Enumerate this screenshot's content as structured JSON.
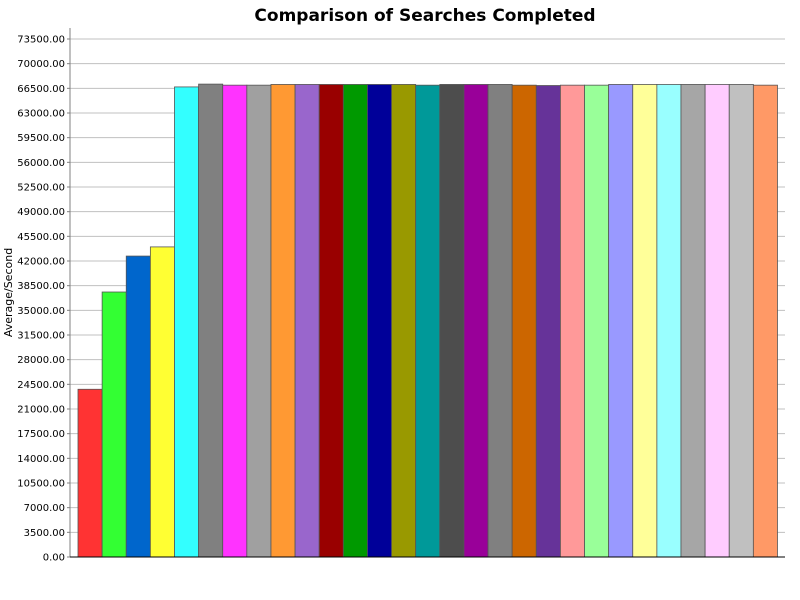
{
  "chart_data": {
    "type": "bar",
    "title": "Comparison of Searches Completed",
    "xlabel": "",
    "ylabel": "Average/Second",
    "ylim": [
      0,
      73500
    ],
    "yticks": [
      0,
      3500,
      7000,
      10500,
      14000,
      17500,
      21000,
      24500,
      28000,
      31500,
      35000,
      38500,
      42000,
      45500,
      49000,
      52500,
      56000,
      59500,
      63000,
      66500,
      70000,
      73500
    ],
    "ytick_labels": [
      "0.00",
      "3500.00",
      "7000.00",
      "10500.00",
      "14000.00",
      "17500.00",
      "21000.00",
      "24500.00",
      "28000.00",
      "31500.00",
      "35000.00",
      "38500.00",
      "42000.00",
      "45500.00",
      "49000.00",
      "52500.00",
      "56000.00",
      "59500.00",
      "63000.00",
      "66500.00",
      "70000.00",
      "73500.00"
    ],
    "grid": true,
    "values": [
      23800,
      37600,
      42700,
      44000,
      66700,
      67100,
      66950,
      66950,
      67050,
      67050,
      67050,
      67050,
      67050,
      67050,
      66950,
      67050,
      67050,
      67050,
      66950,
      66900,
      66950,
      66950,
      67050,
      67050,
      67050,
      67050,
      67050,
      67050,
      66950
    ],
    "colors": [
      "#ff3333",
      "#33ff33",
      "#0066cc",
      "#ffff33",
      "#33ffff",
      "#808080",
      "#ff33ff",
      "#a0a0a0",
      "#ff9933",
      "#9966cc",
      "#990000",
      "#009900",
      "#000099",
      "#999900",
      "#009999",
      "#4d4d4d",
      "#990099",
      "#808080",
      "#cc6600",
      "#663399",
      "#ff9999",
      "#99ff99",
      "#9999ff",
      "#ffff99",
      "#99ffff",
      "#a6a6a6",
      "#ffccff",
      "#c0c0c0",
      "#ff9966"
    ]
  }
}
